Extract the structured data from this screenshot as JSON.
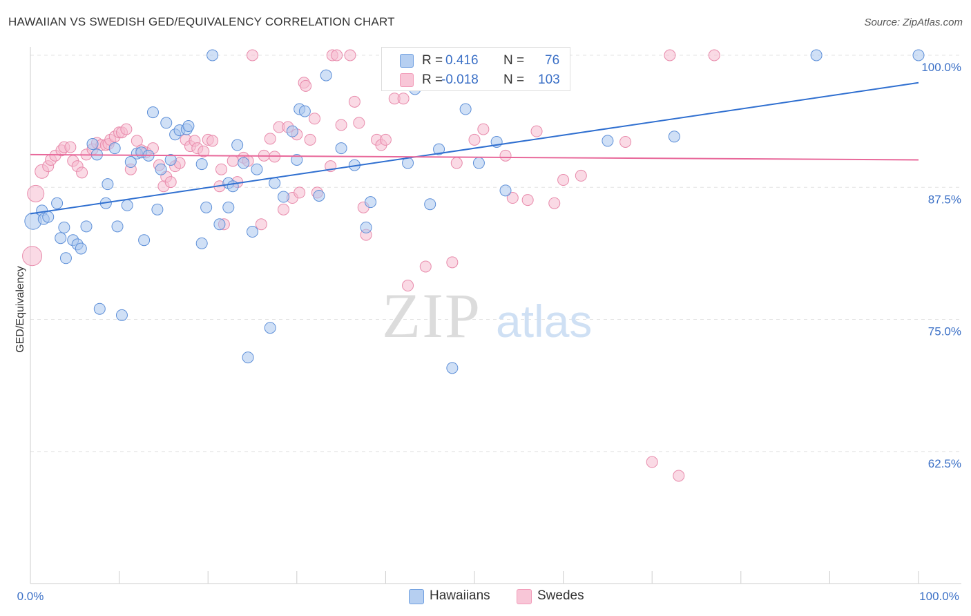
{
  "header": {
    "title": "HAWAIIAN VS SWEDISH GED/EQUIVALENCY CORRELATION CHART",
    "source": "Source: ZipAtlas.com"
  },
  "watermark": {
    "zip": "ZIP",
    "atlas": "atlas"
  },
  "legend": {
    "r_label": "R =",
    "n_label": "N =",
    "rows": [
      {
        "r": "0.416",
        "n": "76",
        "color": "#6f9fe0"
      },
      {
        "r": "-0.018",
        "n": "103",
        "color": "#f29ab8"
      }
    ]
  },
  "bottom_legend": {
    "hawaiians": "Hawaiians",
    "swedes": "Swedes"
  },
  "colors": {
    "hawaiians_fill": "#a9c7ef",
    "hawaiians_stroke": "#5d8fd8",
    "hawaiians_line": "#2f6fd0",
    "swedes_fill": "#f6bcd0",
    "swedes_stroke": "#e88aab",
    "swedes_line": "#e8689a",
    "tick_label": "#3a6fc6",
    "grid": "#e3e3e3"
  },
  "chart_data": {
    "type": "scatter",
    "title": "HAWAIIAN VS SWEDISH GED/EQUIVALENCY CORRELATION CHART",
    "xlabel": "",
    "ylabel": "GED/Equivalency",
    "xlim": [
      0,
      100
    ],
    "ylim": [
      50,
      100
    ],
    "x_tick_labels": [
      "0.0%",
      "100.0%"
    ],
    "y_ticks": [
      62.5,
      75.0,
      87.5,
      100.0
    ],
    "y_tick_labels": [
      "62.5%",
      "75.0%",
      "87.5%",
      "100.0%"
    ],
    "grid": true,
    "legend_position": "top-center",
    "series": [
      {
        "name": "Hawaiians",
        "trend": {
          "x": [
            0,
            100
          ],
          "y": [
            85.0,
            97.4
          ]
        },
        "points": [
          [
            0.3,
            84.3
          ],
          [
            1.3,
            85.3
          ],
          [
            1.5,
            84.5
          ],
          [
            2.0,
            84.7
          ],
          [
            3.0,
            86.0
          ],
          [
            3.4,
            82.7
          ],
          [
            3.8,
            83.7
          ],
          [
            4.0,
            80.8
          ],
          [
            4.8,
            82.5
          ],
          [
            5.3,
            82.1
          ],
          [
            5.7,
            81.7
          ],
          [
            6.3,
            83.8
          ],
          [
            7.0,
            91.6
          ],
          [
            7.5,
            90.6
          ],
          [
            7.8,
            76.0
          ],
          [
            8.5,
            86.0
          ],
          [
            8.7,
            87.8
          ],
          [
            9.5,
            91.2
          ],
          [
            9.8,
            83.8
          ],
          [
            10.3,
            75.4
          ],
          [
            10.9,
            85.8
          ],
          [
            11.3,
            89.9
          ],
          [
            12.0,
            90.7
          ],
          [
            12.5,
            90.8
          ],
          [
            12.8,
            82.5
          ],
          [
            13.3,
            90.5
          ],
          [
            13.8,
            94.6
          ],
          [
            14.3,
            85.4
          ],
          [
            14.7,
            89.2
          ],
          [
            15.3,
            93.6
          ],
          [
            15.8,
            90.1
          ],
          [
            16.3,
            92.5
          ],
          [
            16.8,
            92.9
          ],
          [
            17.6,
            93.0
          ],
          [
            17.8,
            93.3
          ],
          [
            19.3,
            89.7
          ],
          [
            19.3,
            82.2
          ],
          [
            19.8,
            85.6
          ],
          [
            20.5,
            100.0
          ],
          [
            21.3,
            84.0
          ],
          [
            22.3,
            87.9
          ],
          [
            22.3,
            85.6
          ],
          [
            22.8,
            87.6
          ],
          [
            23.3,
            91.5
          ],
          [
            24.0,
            89.8
          ],
          [
            24.5,
            71.4
          ],
          [
            25.0,
            83.3
          ],
          [
            25.5,
            89.2
          ],
          [
            27.0,
            74.2
          ],
          [
            27.5,
            87.9
          ],
          [
            28.5,
            86.6
          ],
          [
            29.5,
            92.8
          ],
          [
            30.0,
            90.1
          ],
          [
            30.3,
            94.9
          ],
          [
            30.9,
            94.7
          ],
          [
            32.5,
            86.7
          ],
          [
            33.3,
            98.1
          ],
          [
            35.0,
            91.2
          ],
          [
            36.5,
            89.6
          ],
          [
            37.8,
            83.7
          ],
          [
            38.3,
            86.1
          ],
          [
            42.5,
            89.8
          ],
          [
            43.3,
            96.8
          ],
          [
            45.0,
            85.9
          ],
          [
            46.0,
            91.1
          ],
          [
            47.5,
            70.4
          ],
          [
            49.0,
            94.9
          ],
          [
            50.5,
            89.8
          ],
          [
            52.5,
            91.8
          ],
          [
            53.5,
            87.2
          ],
          [
            65.0,
            91.9
          ],
          [
            72.5,
            92.3
          ],
          [
            88.5,
            100.0
          ],
          [
            100.0,
            100.0
          ]
        ]
      },
      {
        "name": "Swedes",
        "trend": {
          "x": [
            0,
            100
          ],
          "y": [
            90.6,
            90.1
          ]
        },
        "points": [
          [
            0.2,
            81.0
          ],
          [
            0.6,
            86.9
          ],
          [
            1.3,
            89.0
          ],
          [
            2.0,
            89.5
          ],
          [
            2.3,
            90.1
          ],
          [
            2.8,
            90.5
          ],
          [
            3.5,
            91.0
          ],
          [
            3.8,
            91.3
          ],
          [
            4.5,
            91.3
          ],
          [
            4.8,
            90.0
          ],
          [
            5.3,
            89.5
          ],
          [
            5.8,
            88.9
          ],
          [
            6.3,
            90.6
          ],
          [
            7.0,
            91.1
          ],
          [
            7.5,
            91.7
          ],
          [
            8.0,
            91.5
          ],
          [
            8.5,
            91.5
          ],
          [
            8.8,
            91.6
          ],
          [
            9.0,
            92.0
          ],
          [
            9.5,
            92.3
          ],
          [
            10.0,
            92.7
          ],
          [
            10.3,
            92.7
          ],
          [
            10.8,
            93.0
          ],
          [
            11.3,
            89.2
          ],
          [
            12.0,
            91.9
          ],
          [
            12.5,
            91.0
          ],
          [
            13.0,
            90.8
          ],
          [
            13.8,
            91.2
          ],
          [
            14.5,
            89.6
          ],
          [
            15.0,
            87.6
          ],
          [
            15.3,
            88.5
          ],
          [
            15.8,
            88.0
          ],
          [
            16.3,
            89.5
          ],
          [
            16.8,
            89.8
          ],
          [
            17.5,
            92.0
          ],
          [
            18.0,
            91.4
          ],
          [
            18.5,
            91.9
          ],
          [
            18.8,
            91.2
          ],
          [
            19.5,
            90.9
          ],
          [
            20.0,
            92.0
          ],
          [
            20.5,
            91.9
          ],
          [
            21.3,
            87.6
          ],
          [
            21.5,
            89.2
          ],
          [
            21.8,
            84.0
          ],
          [
            22.8,
            90.0
          ],
          [
            23.3,
            88.0
          ],
          [
            24.0,
            90.3
          ],
          [
            24.5,
            90.0
          ],
          [
            25.0,
            100.0
          ],
          [
            26.0,
            84.0
          ],
          [
            26.3,
            90.5
          ],
          [
            27.0,
            92.1
          ],
          [
            27.5,
            90.4
          ],
          [
            28.0,
            93.2
          ],
          [
            28.5,
            85.4
          ],
          [
            29.0,
            93.2
          ],
          [
            29.5,
            86.5
          ],
          [
            30.0,
            92.5
          ],
          [
            30.3,
            87.0
          ],
          [
            30.8,
            97.4
          ],
          [
            31.0,
            97.1
          ],
          [
            31.5,
            92.0
          ],
          [
            32.0,
            94.0
          ],
          [
            32.3,
            87.0
          ],
          [
            33.8,
            89.5
          ],
          [
            34.0,
            100.0
          ],
          [
            34.5,
            100.0
          ],
          [
            35.0,
            93.4
          ],
          [
            36.0,
            100.0
          ],
          [
            36.5,
            95.6
          ],
          [
            37.0,
            93.6
          ],
          [
            37.5,
            85.6
          ],
          [
            37.8,
            83.0
          ],
          [
            39.0,
            92.0
          ],
          [
            39.5,
            91.5
          ],
          [
            40.0,
            92.0
          ],
          [
            41.0,
            95.9
          ],
          [
            41.5,
            100.0
          ],
          [
            42.0,
            95.9
          ],
          [
            42.5,
            78.2
          ],
          [
            44.5,
            80.0
          ],
          [
            46.0,
            100.0
          ],
          [
            47.5,
            80.4
          ],
          [
            48.0,
            89.8
          ],
          [
            50.0,
            92.0
          ],
          [
            51.0,
            93.0
          ],
          [
            53.5,
            90.5
          ],
          [
            54.3,
            86.5
          ],
          [
            56.0,
            86.3
          ],
          [
            57.0,
            92.8
          ],
          [
            59.0,
            86.0
          ],
          [
            60.0,
            88.2
          ],
          [
            62.0,
            88.6
          ],
          [
            67.0,
            91.8
          ],
          [
            70.0,
            61.5
          ],
          [
            72.0,
            100.0
          ],
          [
            73.0,
            60.2
          ],
          [
            77.0,
            100.0
          ]
        ]
      }
    ]
  }
}
